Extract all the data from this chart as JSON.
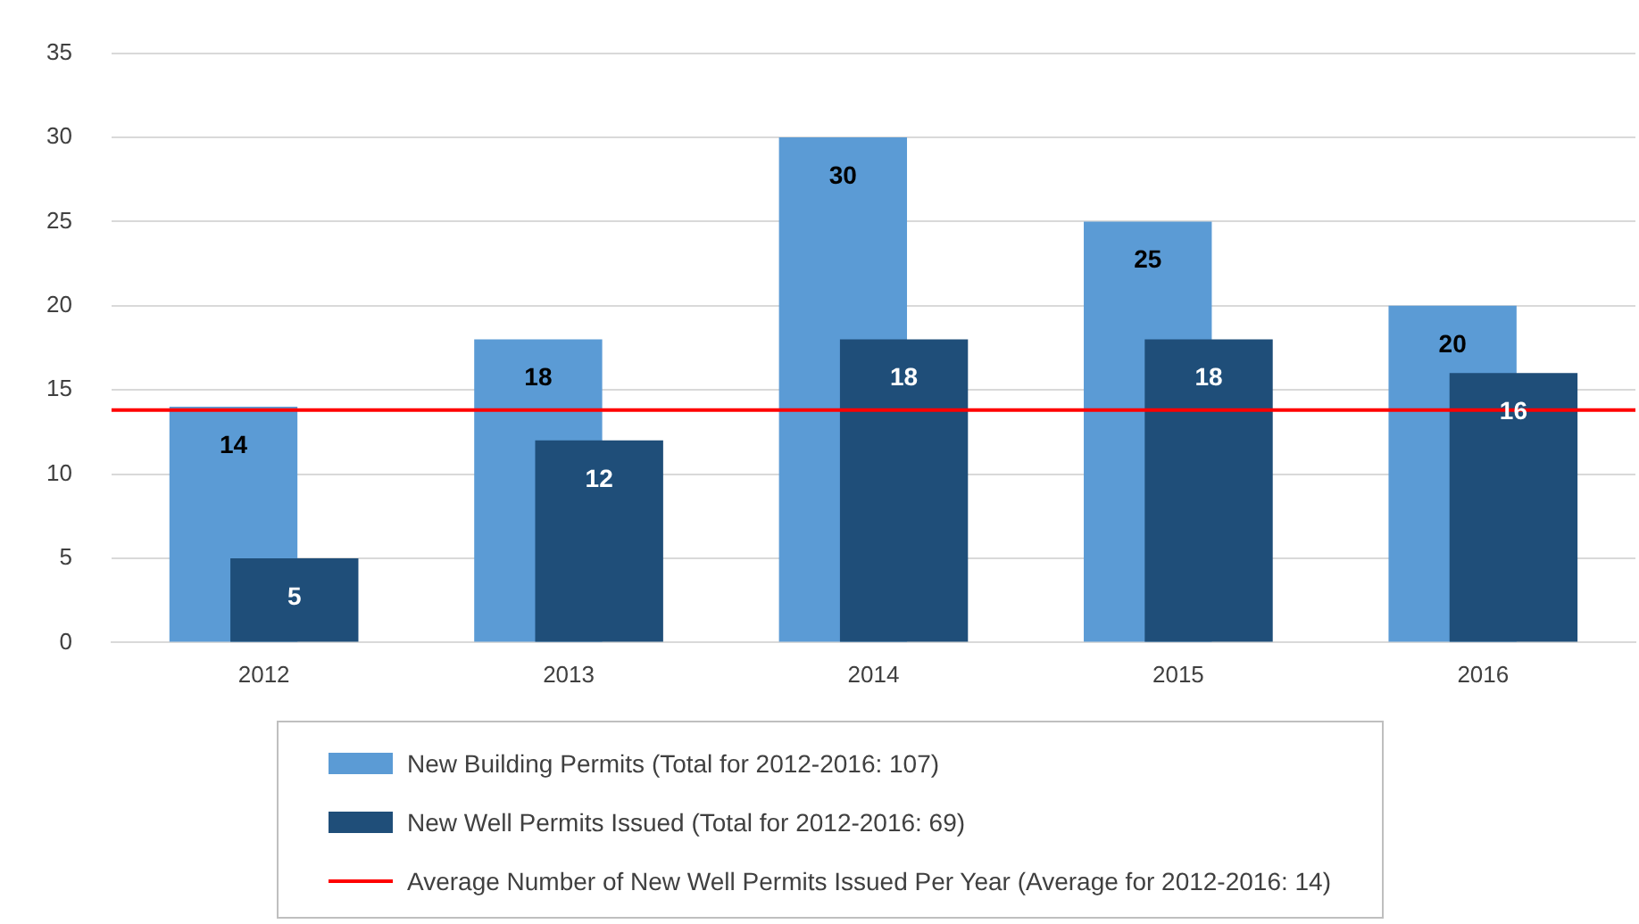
{
  "chart_data": {
    "type": "bar",
    "categories": [
      "2012",
      "2013",
      "2014",
      "2015",
      "2016"
    ],
    "series": [
      {
        "name": "New Building Permits (Total for 2012-2016: 107)",
        "color": "#5b9bd5",
        "values": [
          14,
          18,
          30,
          25,
          20
        ]
      },
      {
        "name": "New Well Permits Issued (Total for 2012-2016: 69)",
        "color": "#1f4e79",
        "values": [
          5,
          12,
          18,
          18,
          16
        ]
      }
    ],
    "ylim": [
      0,
      35
    ],
    "yticks": [
      0,
      5,
      10,
      15,
      20,
      25,
      30,
      35
    ],
    "grid": "y",
    "data_labels": true,
    "legend": "bottom",
    "ref_lines": [
      {
        "axis": "y",
        "value": 13.8,
        "label": "Average Number of New Well Permits Issued Per Year (Average for 2012-2016: 14)",
        "color": "#ff0000"
      }
    ]
  }
}
